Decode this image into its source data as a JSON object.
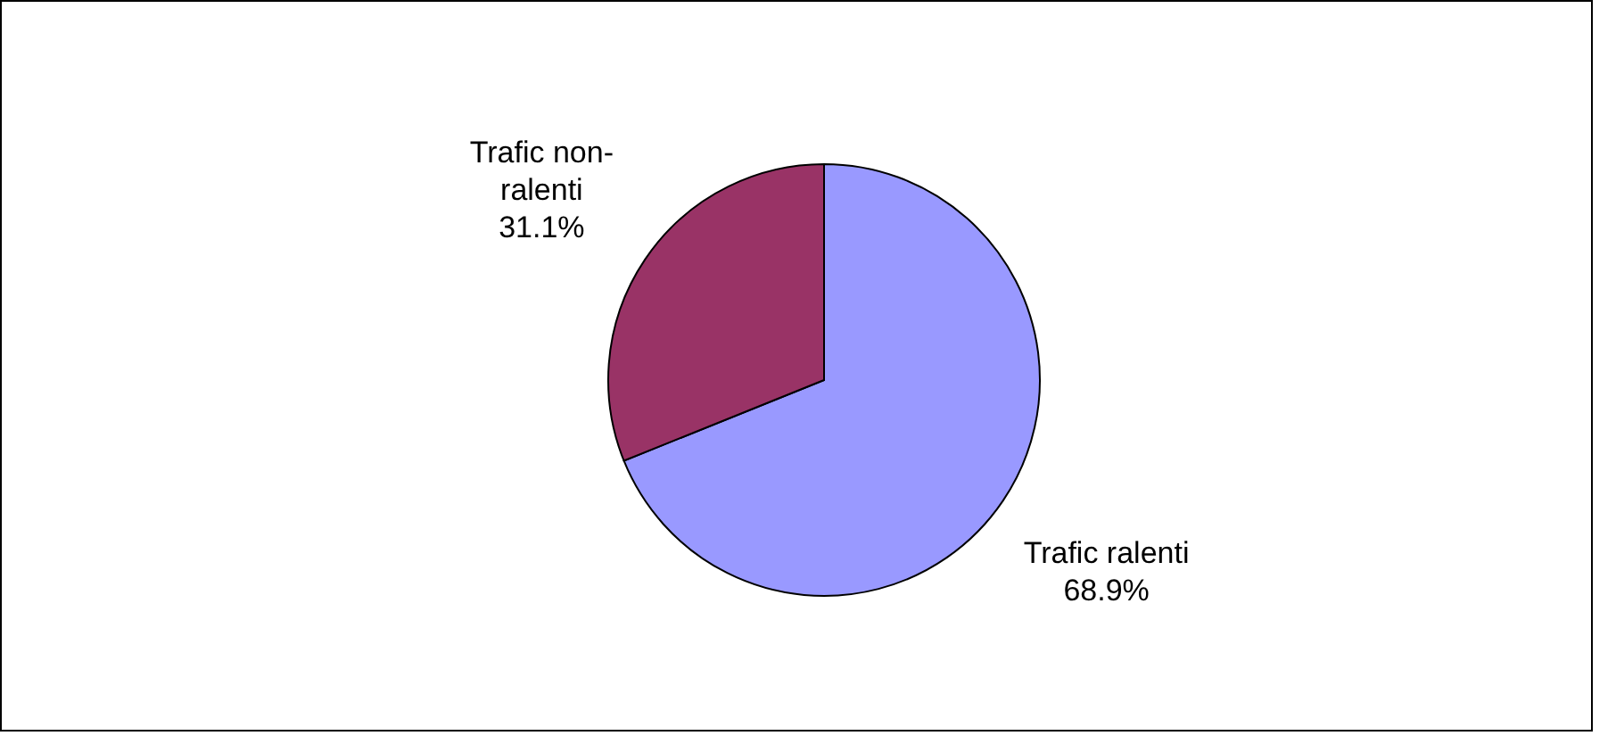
{
  "chart_data": {
    "type": "pie",
    "categories": [
      "Trafic ralenti",
      "Trafic non-ralenti"
    ],
    "values": [
      68.9,
      31.1
    ],
    "colors": [
      "#9999ff",
      "#993366"
    ],
    "value_labels": [
      "68.9%",
      "31.1%"
    ],
    "legend": false
  }
}
